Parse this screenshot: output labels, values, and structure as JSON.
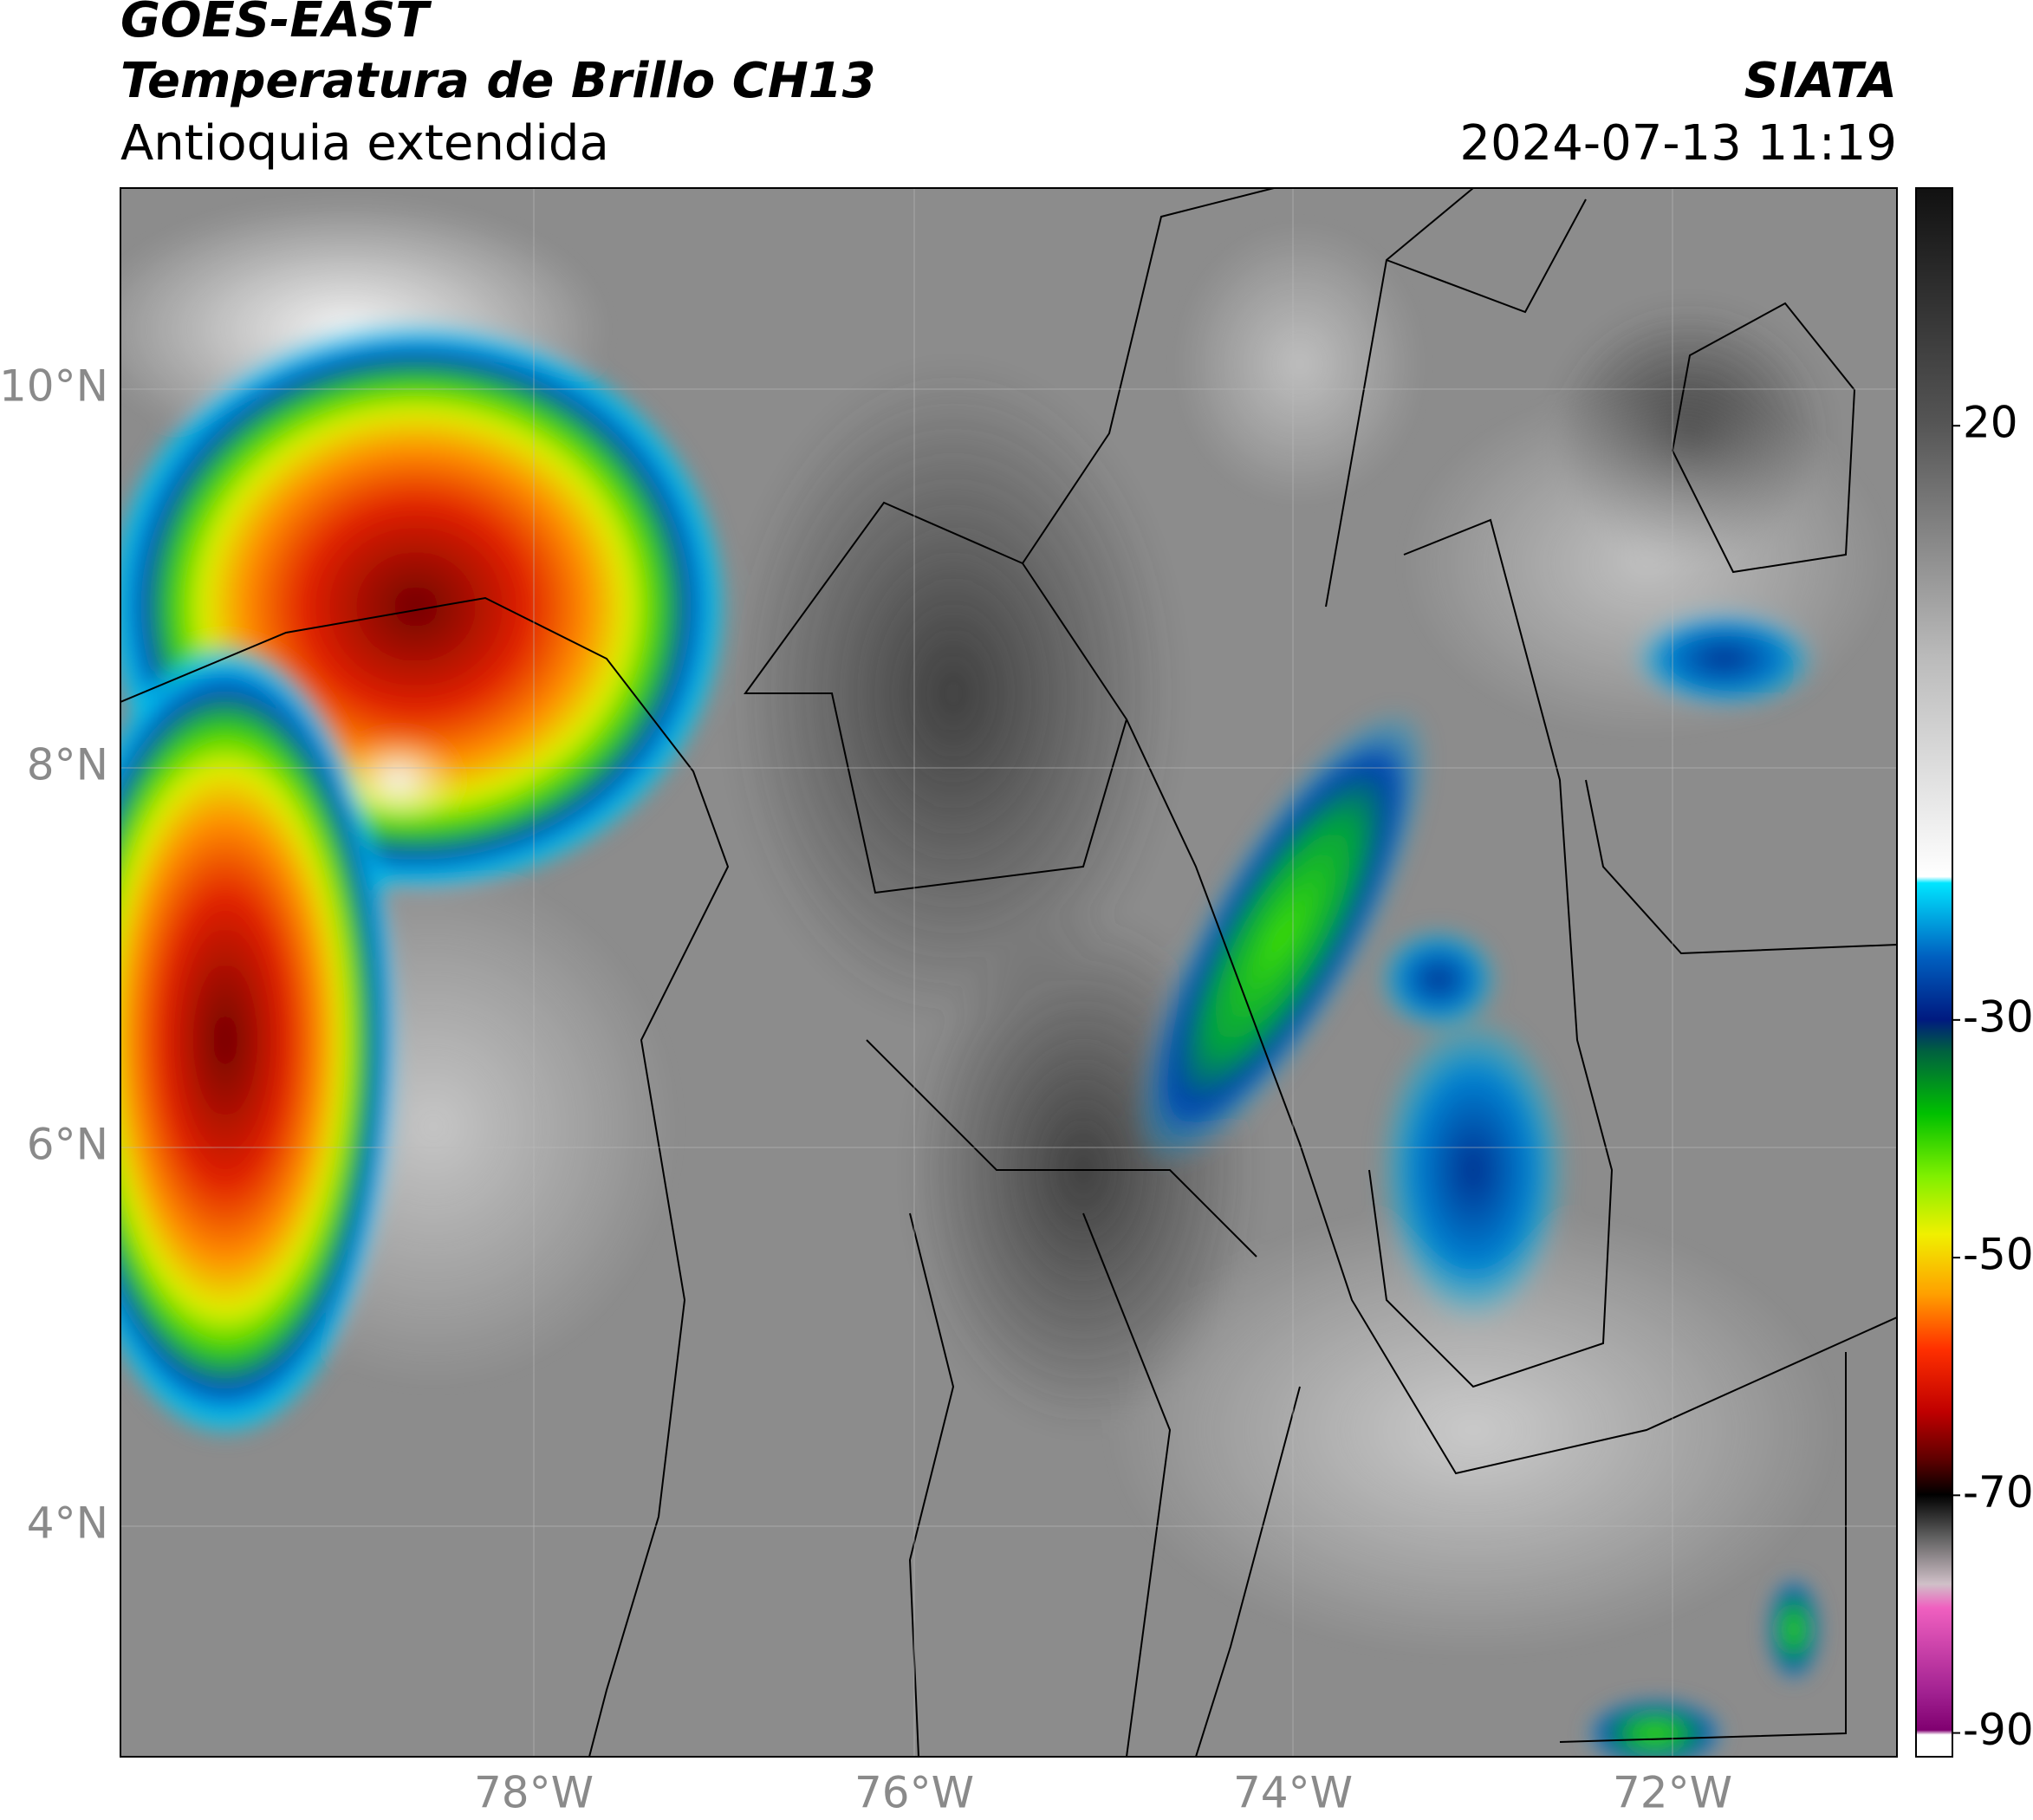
{
  "header": {
    "satellite": "GOES-EAST",
    "product": "Temperatura de Brillo CH13",
    "region": "Antioquia extendida",
    "agency": "SIATA",
    "datetime": "2024-07-13 11:19"
  },
  "map": {
    "lat_labels": [
      "10°N",
      "8°N",
      "6°N",
      "4°N"
    ],
    "lon_labels": [
      "78°W",
      "76°W",
      "74°W",
      "72°W"
    ]
  },
  "colorbar": {
    "lim": [
      -92,
      40
    ],
    "ticks": [
      20,
      -30,
      -50,
      -70,
      -90
    ]
  }
}
